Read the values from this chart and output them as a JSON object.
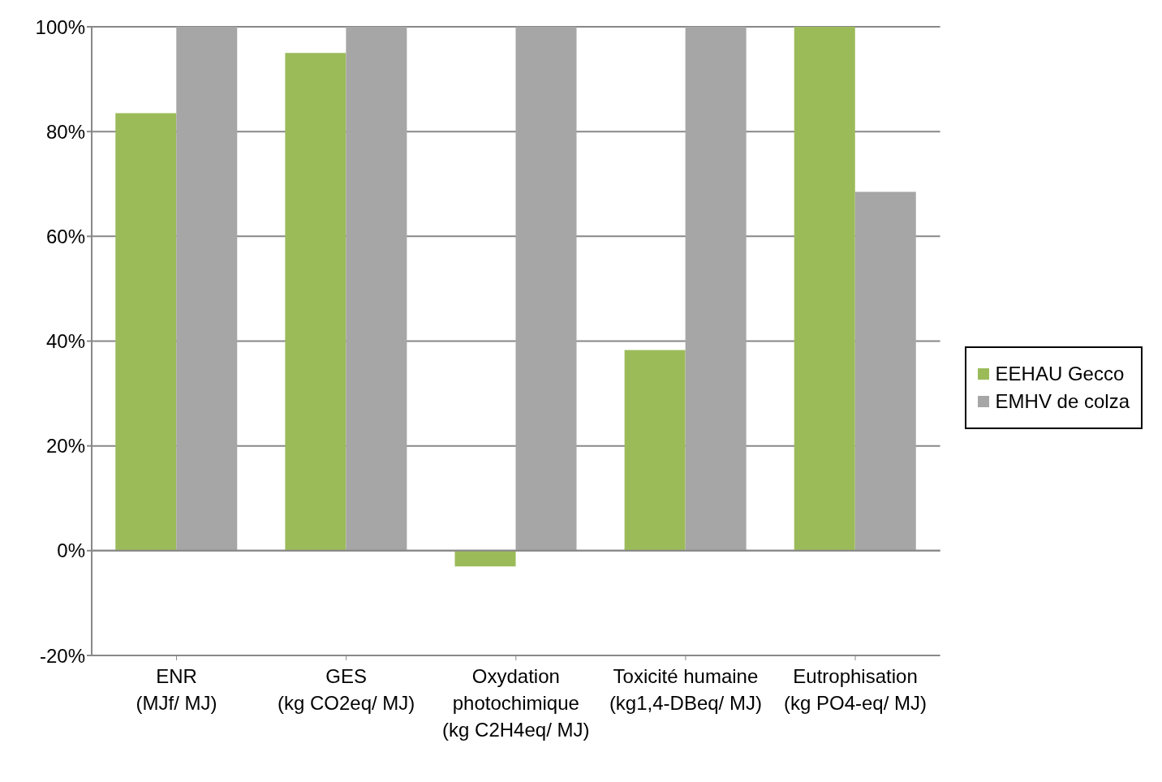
{
  "chart_data": {
    "type": "bar",
    "categories": [
      "ENR\n(MJf/ MJ)",
      "GES\n(kg CO2eq/ MJ)",
      "Oxydation\nphotochimique\n(kg C2H4eq/ MJ)",
      "Toxicité humaine\n(kg1,4-DBeq/ MJ)",
      "Eutrophisation\n(kg PO4-eq/ MJ)"
    ],
    "series": [
      {
        "name": "EEHAU  Gecco",
        "color": "#9bbb59",
        "values": [
          83.5,
          95,
          -3,
          38.3,
          100
        ]
      },
      {
        "name": "EMHV de colza",
        "color": "#a6a6a6",
        "values": [
          100,
          100,
          100,
          100,
          68.5
        ]
      }
    ],
    "ylim": [
      -20,
      100
    ],
    "yticks": [
      {
        "value": -20,
        "label": "-20%"
      },
      {
        "value": 0,
        "label": "0%"
      },
      {
        "value": 20,
        "label": "20%"
      },
      {
        "value": 40,
        "label": "40%"
      },
      {
        "value": 60,
        "label": "60%"
      },
      {
        "value": 80,
        "label": "80%"
      },
      {
        "value": 100,
        "label": "100%"
      }
    ],
    "grid": "y",
    "legend": "right"
  }
}
